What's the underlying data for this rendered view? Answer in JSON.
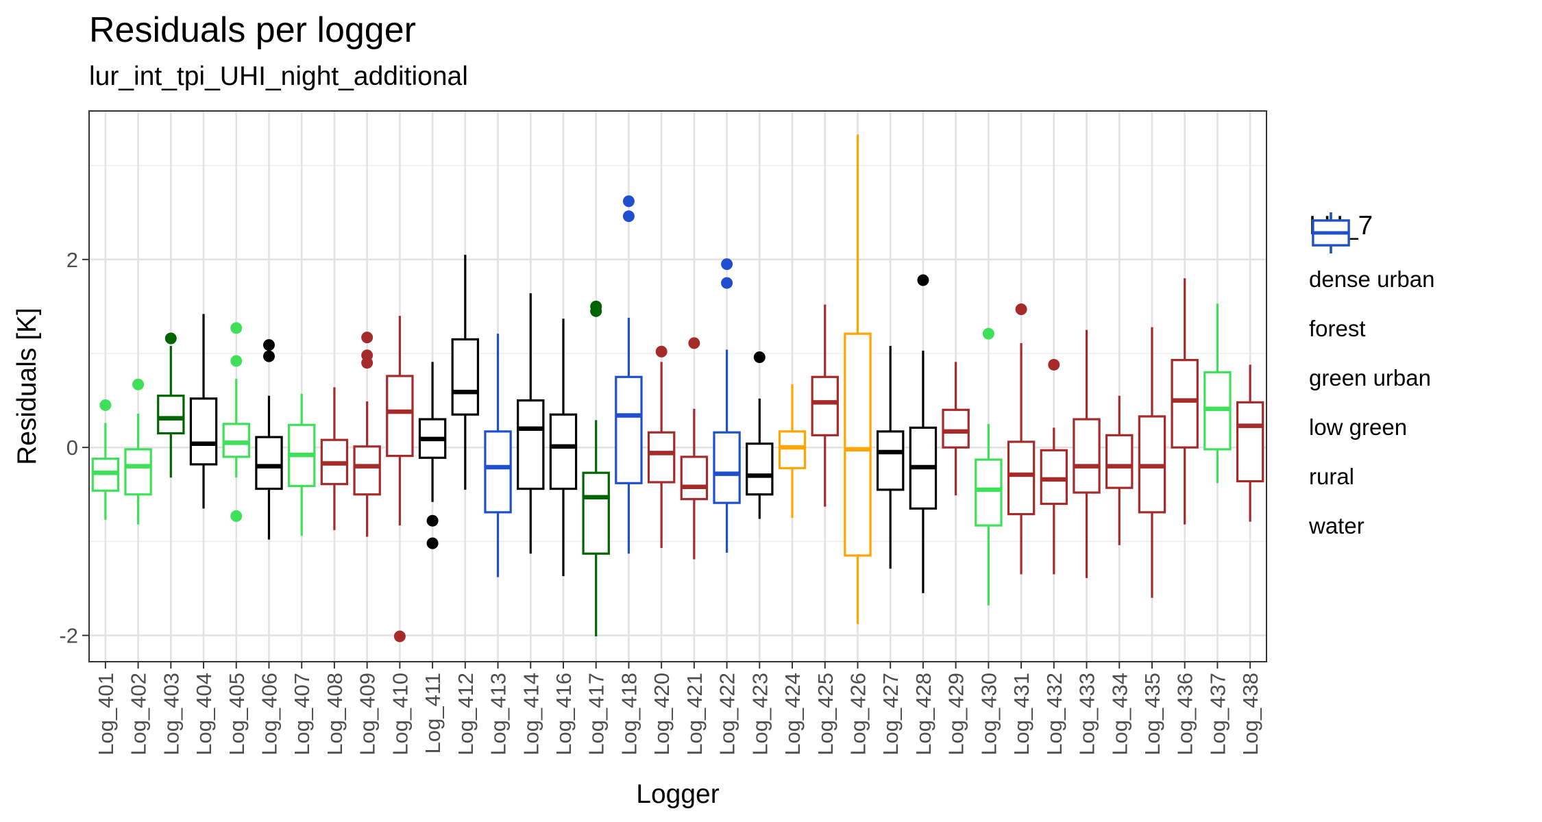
{
  "chart_data": {
    "type": "boxplot",
    "title": "Residuals per logger",
    "subtitle": "lur_int_tpi_UHI_night_additional",
    "xlabel": "Logger",
    "ylabel": "Residuals [K]",
    "ylim": [
      -2.28,
      3.58
    ],
    "yticks": [
      -2,
      0,
      2
    ],
    "grid": true,
    "legend": {
      "title": "LU_7",
      "position": "right",
      "entries": [
        {
          "name": "dense urban",
          "color": "#000000"
        },
        {
          "name": "forest",
          "color": "#006400"
        },
        {
          "name": "green urban",
          "color": "#A52A2A"
        },
        {
          "name": "low green",
          "color": "#3EE05A"
        },
        {
          "name": "rural",
          "color": "#FFA500"
        },
        {
          "name": "water",
          "color": "#1F4FCF"
        }
      ]
    },
    "boxes": [
      {
        "label": "Log_401",
        "group": "low green",
        "q1": -0.46,
        "median": -0.27,
        "q3": -0.12,
        "lower": -0.77,
        "upper": 0.26,
        "outliers": [
          0.45
        ]
      },
      {
        "label": "Log_402",
        "group": "low green",
        "q1": -0.5,
        "median": -0.2,
        "q3": -0.02,
        "lower": -0.82,
        "upper": 0.36,
        "outliers": [
          0.67
        ]
      },
      {
        "label": "Log_403",
        "group": "forest",
        "q1": 0.15,
        "median": 0.31,
        "q3": 0.55,
        "lower": -0.32,
        "upper": 1.08,
        "outliers": [
          1.16
        ]
      },
      {
        "label": "Log_404",
        "group": "dense urban",
        "q1": -0.18,
        "median": 0.04,
        "q3": 0.52,
        "lower": -0.65,
        "upper": 1.42,
        "outliers": []
      },
      {
        "label": "Log_405",
        "group": "low green",
        "q1": -0.1,
        "median": 0.05,
        "q3": 0.25,
        "lower": -0.32,
        "upper": 0.73,
        "outliers": [
          1.27,
          0.92,
          -0.73
        ]
      },
      {
        "label": "Log_406",
        "group": "dense urban",
        "q1": -0.44,
        "median": -0.2,
        "q3": 0.11,
        "lower": -0.98,
        "upper": 0.55,
        "outliers": [
          1.09,
          0.97
        ]
      },
      {
        "label": "Log_407",
        "group": "low green",
        "q1": -0.41,
        "median": -0.08,
        "q3": 0.24,
        "lower": -0.94,
        "upper": 0.57,
        "outliers": []
      },
      {
        "label": "Log_408",
        "group": "green urban",
        "q1": -0.39,
        "median": -0.17,
        "q3": 0.08,
        "lower": -0.88,
        "upper": 0.64,
        "outliers": []
      },
      {
        "label": "Log_409",
        "group": "green urban",
        "q1": -0.5,
        "median": -0.2,
        "q3": 0.01,
        "lower": -0.95,
        "upper": 0.49,
        "outliers": [
          1.17,
          0.98,
          0.9
        ]
      },
      {
        "label": "Log_410",
        "group": "green urban",
        "q1": -0.09,
        "median": 0.38,
        "q3": 0.76,
        "lower": -0.83,
        "upper": 1.4,
        "outliers": [
          -2.01
        ]
      },
      {
        "label": "Log_411",
        "group": "dense urban",
        "q1": -0.11,
        "median": 0.09,
        "q3": 0.3,
        "lower": -0.58,
        "upper": 0.91,
        "outliers": [
          -0.78,
          -1.02
        ]
      },
      {
        "label": "Log_412",
        "group": "dense urban",
        "q1": 0.35,
        "median": 0.59,
        "q3": 1.15,
        "lower": -0.45,
        "upper": 2.05,
        "outliers": []
      },
      {
        "label": "Log_413",
        "group": "water",
        "q1": -0.69,
        "median": -0.21,
        "q3": 0.17,
        "lower": -1.38,
        "upper": 1.21,
        "outliers": []
      },
      {
        "label": "Log_414",
        "group": "dense urban",
        "q1": -0.44,
        "median": 0.2,
        "q3": 0.5,
        "lower": -1.13,
        "upper": 1.64,
        "outliers": []
      },
      {
        "label": "Log_416",
        "group": "dense urban",
        "q1": -0.44,
        "median": 0.01,
        "q3": 0.35,
        "lower": -1.37,
        "upper": 1.37,
        "outliers": []
      },
      {
        "label": "Log_417",
        "group": "forest",
        "q1": -1.13,
        "median": -0.53,
        "q3": -0.27,
        "lower": -2.01,
        "upper": 0.29,
        "outliers": [
          1.5,
          1.45
        ]
      },
      {
        "label": "Log_418",
        "group": "water",
        "q1": -0.38,
        "median": 0.34,
        "q3": 0.75,
        "lower": -1.13,
        "upper": 1.38,
        "outliers": [
          2.62,
          2.46
        ]
      },
      {
        "label": "Log_420",
        "group": "green urban",
        "q1": -0.37,
        "median": -0.06,
        "q3": 0.16,
        "lower": -1.07,
        "upper": 0.91,
        "outliers": [
          1.02
        ]
      },
      {
        "label": "Log_421",
        "group": "green urban",
        "q1": -0.55,
        "median": -0.42,
        "q3": -0.1,
        "lower": -1.19,
        "upper": 0.41,
        "outliers": [
          1.11
        ]
      },
      {
        "label": "Log_422",
        "group": "water",
        "q1": -0.59,
        "median": -0.28,
        "q3": 0.16,
        "lower": -1.12,
        "upper": 1.04,
        "outliers": [
          1.95,
          1.75
        ]
      },
      {
        "label": "Log_423",
        "group": "dense urban",
        "q1": -0.5,
        "median": -0.3,
        "q3": 0.04,
        "lower": -0.76,
        "upper": 0.52,
        "outliers": [
          0.96
        ]
      },
      {
        "label": "Log_424",
        "group": "rural",
        "q1": -0.22,
        "median": 0.0,
        "q3": 0.17,
        "lower": -0.75,
        "upper": 0.67,
        "outliers": []
      },
      {
        "label": "Log_425",
        "group": "green urban",
        "q1": 0.13,
        "median": 0.48,
        "q3": 0.75,
        "lower": -0.63,
        "upper": 1.52,
        "outliers": []
      },
      {
        "label": "Log_426",
        "group": "rural",
        "q1": -1.15,
        "median": -0.02,
        "q3": 1.21,
        "lower": -1.88,
        "upper": 3.33,
        "outliers": []
      },
      {
        "label": "Log_427",
        "group": "dense urban",
        "q1": -0.45,
        "median": -0.05,
        "q3": 0.17,
        "lower": -1.29,
        "upper": 1.08,
        "outliers": []
      },
      {
        "label": "Log_428",
        "group": "dense urban",
        "q1": -0.65,
        "median": -0.21,
        "q3": 0.21,
        "lower": -1.55,
        "upper": 1.03,
        "outliers": [
          1.78
        ]
      },
      {
        "label": "Log_429",
        "group": "green urban",
        "q1": 0.0,
        "median": 0.17,
        "q3": 0.4,
        "lower": -0.51,
        "upper": 0.91,
        "outliers": []
      },
      {
        "label": "Log_430",
        "group": "low green",
        "q1": -0.83,
        "median": -0.45,
        "q3": -0.13,
        "lower": -1.68,
        "upper": 0.25,
        "outliers": [
          1.21
        ]
      },
      {
        "label": "Log_431",
        "group": "green urban",
        "q1": -0.71,
        "median": -0.29,
        "q3": 0.06,
        "lower": -1.35,
        "upper": 1.11,
        "outliers": [
          1.47
        ]
      },
      {
        "label": "Log_432",
        "group": "green urban",
        "q1": -0.6,
        "median": -0.34,
        "q3": -0.03,
        "lower": -1.35,
        "upper": 0.21,
        "outliers": [
          0.88
        ]
      },
      {
        "label": "Log_433",
        "group": "green urban",
        "q1": -0.48,
        "median": -0.2,
        "q3": 0.3,
        "lower": -1.39,
        "upper": 1.25,
        "outliers": []
      },
      {
        "label": "Log_434",
        "group": "green urban",
        "q1": -0.43,
        "median": -0.2,
        "q3": 0.13,
        "lower": -1.04,
        "upper": 0.55,
        "outliers": []
      },
      {
        "label": "Log_435",
        "group": "green urban",
        "q1": -0.69,
        "median": -0.2,
        "q3": 0.33,
        "lower": -1.6,
        "upper": 1.28,
        "outliers": []
      },
      {
        "label": "Log_436",
        "group": "green urban",
        "q1": 0.0,
        "median": 0.5,
        "q3": 0.93,
        "lower": -0.82,
        "upper": 1.8,
        "outliers": []
      },
      {
        "label": "Log_437",
        "group": "low green",
        "q1": -0.02,
        "median": 0.41,
        "q3": 0.8,
        "lower": -0.38,
        "upper": 1.53,
        "outliers": []
      },
      {
        "label": "Log_438",
        "group": "green urban",
        "q1": -0.36,
        "median": 0.23,
        "q3": 0.48,
        "lower": -0.79,
        "upper": 0.88,
        "outliers": []
      }
    ]
  }
}
